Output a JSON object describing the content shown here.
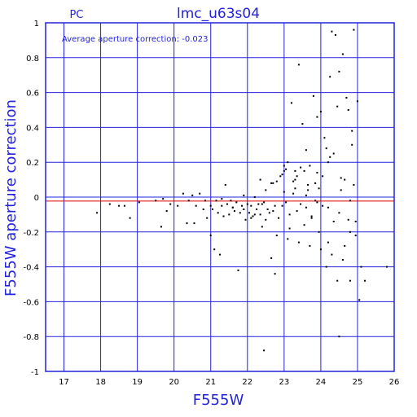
{
  "chart_data": {
    "type": "scatter",
    "tag": "PC",
    "title": "lmc_u63s04",
    "annotation": "Average aperture correction: -0.023",
    "average_correction": -0.023,
    "xlabel": "F555W",
    "ylabel": "F555W aperture correction",
    "xlim": [
      16.5,
      26
    ],
    "ylim": [
      -1,
      1
    ],
    "xticks": [
      "17",
      "18",
      "19",
      "20",
      "21",
      "22",
      "23",
      "24",
      "25",
      "26"
    ],
    "yticks": [
      "1",
      "0.8",
      "0.6",
      "0.4",
      "0.2",
      "0",
      "-0.2",
      "-0.4",
      "-0.6",
      "-0.8",
      "-1"
    ],
    "grid": true,
    "colors": {
      "axes": "#2222dd",
      "points": "#000000",
      "average_line": "#dd0000"
    },
    "x": [
      17.9,
      18.25,
      18.5,
      18.65,
      18.8,
      19.05,
      19.5,
      19.65,
      19.7,
      19.8,
      19.9,
      20.1,
      20.25,
      20.35,
      20.4,
      20.5,
      20.55,
      20.6,
      20.7,
      20.8,
      20.85,
      20.9,
      21.0,
      21.05,
      21.1,
      21.15,
      21.2,
      21.25,
      21.3,
      21.35,
      21.4,
      21.45,
      21.5,
      21.55,
      21.6,
      21.65,
      21.7,
      21.75,
      21.8,
      21.85,
      21.9,
      21.95,
      22.0,
      22.05,
      22.1,
      22.15,
      22.2,
      22.25,
      22.3,
      22.35,
      22.4,
      22.45,
      22.5,
      22.55,
      22.6,
      22.65,
      22.7,
      22.75,
      22.8,
      22.85,
      22.9,
      22.95,
      23.0,
      23.05,
      23.1,
      23.15,
      23.2,
      23.25,
      23.3,
      23.35,
      23.4,
      23.45,
      23.5,
      23.55,
      23.6,
      23.65,
      23.7,
      23.75,
      23.8,
      23.85,
      23.9,
      23.95,
      24.0,
      24.05,
      24.1,
      24.15,
      24.2,
      24.25,
      24.3,
      24.35,
      24.4,
      24.45,
      24.5,
      24.55,
      24.6,
      24.65,
      24.7,
      24.75,
      24.8,
      24.85,
      24.9,
      24.95,
      25.0,
      25.05,
      25.1,
      25.2,
      25.8,
      21.0,
      21.3,
      21.6,
      21.9,
      22.2,
      22.5,
      22.8,
      23.1,
      23.4,
      23.7,
      24.0,
      24.3,
      24.6,
      24.9,
      22.35,
      22.65,
      22.95,
      23.25,
      23.55,
      23.85,
      24.15,
      24.45,
      24.75,
      23.0,
      23.3,
      23.6,
      23.9,
      24.2,
      24.5,
      24.8,
      22.1,
      22.4,
      22.7,
      23.15,
      23.45,
      23.75,
      24.05,
      24.35,
      24.65,
      24.95,
      23.05,
      23.35,
      23.65,
      23.95,
      24.25,
      24.55,
      24.85,
      22.45,
      22.75,
      23.0,
      23.3,
      23.6,
      23.9,
      24.2,
      24.5,
      24.8
    ],
    "y": [
      -0.09,
      -0.04,
      -0.05,
      -0.05,
      -0.12,
      -0.03,
      -0.02,
      -0.17,
      -0.01,
      -0.08,
      -0.04,
      -0.05,
      0.02,
      -0.15,
      -0.02,
      0.01,
      -0.15,
      -0.05,
      0.02,
      -0.07,
      -0.02,
      -0.12,
      -0.22,
      -0.07,
      -0.3,
      -0.02,
      -0.09,
      -0.33,
      -0.05,
      -0.11,
      0.07,
      -0.04,
      -0.1,
      -0.02,
      -0.06,
      -0.08,
      -0.03,
      -0.42,
      -0.09,
      -0.05,
      0.01,
      -0.13,
      -0.04,
      -0.09,
      -0.05,
      -0.11,
      0.0,
      -0.07,
      -0.04,
      -0.1,
      -0.17,
      -0.03,
      0.04,
      -0.07,
      -0.09,
      -0.35,
      0.08,
      -0.44,
      0.09,
      -0.12,
      0.12,
      -0.05,
      0.18,
      -0.03,
      0.2,
      -0.1,
      0.54,
      0.02,
      0.15,
      -0.08,
      0.76,
      0.17,
      0.42,
      -0.16,
      0.27,
      0.04,
      0.18,
      -0.12,
      0.58,
      0.08,
      0.46,
      -0.2,
      0.49,
      0.12,
      0.34,
      -0.4,
      0.2,
      0.69,
      0.95,
      0.25,
      0.93,
      -0.48,
      0.72,
      0.04,
      0.82,
      0.1,
      0.57,
      -0.13,
      -0.48,
      0.3,
      0.96,
      -0.14,
      0.55,
      -0.59,
      -0.4,
      -0.48,
      -0.4,
      -0.05,
      -0.01,
      -0.06,
      -0.07,
      -0.1,
      -0.13,
      -0.22,
      -0.24,
      -0.26,
      -0.28,
      -0.3,
      -0.33,
      -0.36,
      0.07,
      0.1,
      0.08,
      0.13,
      0.09,
      0.15,
      -0.02,
      0.28,
      0.52,
      0.5,
      0.03,
      0.05,
      0.01,
      -0.03,
      -0.06,
      -0.09,
      -0.02,
      -0.12,
      -0.04,
      -0.08,
      -0.18,
      -0.04,
      -0.11,
      -0.05,
      -0.14,
      -0.28,
      -0.22,
      0.16,
      0.12,
      0.07,
      0.05,
      0.23,
      0.11,
      0.38,
      -0.88,
      -0.05,
      0.15,
      0.1,
      -0.06,
      0.14,
      -0.26,
      -0.8,
      -0.2
    ]
  }
}
